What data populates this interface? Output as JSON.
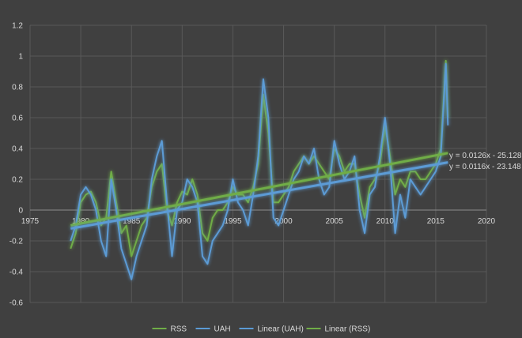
{
  "chart_data": {
    "type": "line",
    "title": "",
    "xlabel": "",
    "ylabel": "",
    "xlim": [
      1975,
      2020
    ],
    "ylim": [
      -0.6,
      1.2
    ],
    "x_ticks": [
      "1975",
      "1980",
      "1985",
      "1990",
      "1995",
      "2000",
      "2005",
      "2010",
      "2015",
      "2020"
    ],
    "y_ticks": [
      "-0.6",
      "-0.4",
      "-0.2",
      "0",
      "0.2",
      "0.4",
      "0.6",
      "0.8",
      "1",
      "1.2"
    ],
    "grid": true,
    "legend_position": "bottom",
    "legend": [
      {
        "label": "RSS",
        "color": "#70ad47"
      },
      {
        "label": "UAH",
        "color": "#5b9bd5"
      },
      {
        "label": "Linear (UAH)",
        "color": "#5b9bd5"
      },
      {
        "label": "Linear (RSS)",
        "color": "#70ad47"
      }
    ],
    "series": [
      {
        "name": "RSS",
        "color": "#70ad47",
        "x": [
          1979.0,
          1979.5,
          1980.0,
          1980.5,
          1981.0,
          1981.5,
          1982.0,
          1982.5,
          1983.0,
          1983.5,
          1984.0,
          1984.5,
          1985.0,
          1985.5,
          1986.0,
          1986.5,
          1987.0,
          1987.5,
          1988.0,
          1988.5,
          1989.0,
          1989.5,
          1990.0,
          1990.5,
          1991.0,
          1991.5,
          1992.0,
          1992.5,
          1993.0,
          1993.5,
          1994.0,
          1994.5,
          1995.0,
          1995.5,
          1996.0,
          1996.5,
          1997.0,
          1997.5,
          1998.0,
          1998.5,
          1999.0,
          1999.5,
          2000.0,
          2000.5,
          2001.0,
          2001.5,
          2002.0,
          2002.5,
          2003.0,
          2003.5,
          2004.0,
          2004.5,
          2005.0,
          2005.5,
          2006.0,
          2006.5,
          2007.0,
          2007.5,
          2008.0,
          2008.5,
          2009.0,
          2009.5,
          2010.0,
          2010.5,
          2011.0,
          2011.5,
          2012.0,
          2012.5,
          2013.0,
          2013.5,
          2014.0,
          2014.5,
          2015.0,
          2015.5,
          2016.0,
          2016.2
        ],
        "values": [
          -0.25,
          -0.15,
          0.05,
          0.1,
          0.12,
          0.05,
          -0.1,
          -0.05,
          0.25,
          0.05,
          -0.15,
          -0.1,
          -0.3,
          -0.2,
          -0.1,
          -0.05,
          0.15,
          0.25,
          0.3,
          0.0,
          -0.1,
          0.05,
          0.12,
          0.1,
          0.2,
          0.1,
          -0.15,
          -0.2,
          -0.05,
          0.0,
          0.0,
          0.05,
          0.15,
          0.1,
          0.1,
          0.05,
          0.15,
          0.3,
          0.75,
          0.5,
          0.05,
          0.05,
          0.1,
          0.15,
          0.25,
          0.3,
          0.35,
          0.3,
          0.35,
          0.3,
          0.25,
          0.2,
          0.4,
          0.35,
          0.25,
          0.3,
          0.3,
          0.1,
          -0.05,
          0.15,
          0.2,
          0.3,
          0.55,
          0.35,
          0.1,
          0.2,
          0.15,
          0.25,
          0.25,
          0.2,
          0.2,
          0.25,
          0.3,
          0.4,
          0.97,
          0.6
        ]
      },
      {
        "name": "UAH",
        "color": "#5b9bd5",
        "x": [
          1979.0,
          1979.5,
          1980.0,
          1980.5,
          1981.0,
          1981.5,
          1982.0,
          1982.5,
          1983.0,
          1983.5,
          1984.0,
          1984.5,
          1985.0,
          1985.5,
          1986.0,
          1986.5,
          1987.0,
          1987.5,
          1988.0,
          1988.5,
          1989.0,
          1989.5,
          1990.0,
          1990.5,
          1991.0,
          1991.5,
          1992.0,
          1992.5,
          1993.0,
          1993.5,
          1994.0,
          1994.5,
          1995.0,
          1995.5,
          1996.0,
          1996.5,
          1997.0,
          1997.5,
          1998.0,
          1998.5,
          1999.0,
          1999.5,
          2000.0,
          2000.5,
          2001.0,
          2001.5,
          2002.0,
          2002.5,
          2003.0,
          2003.5,
          2004.0,
          2004.5,
          2005.0,
          2005.5,
          2006.0,
          2006.5,
          2007.0,
          2007.5,
          2008.0,
          2008.5,
          2009.0,
          2009.5,
          2010.0,
          2010.5,
          2011.0,
          2011.5,
          2012.0,
          2012.5,
          2013.0,
          2013.5,
          2014.0,
          2014.5,
          2015.0,
          2015.5,
          2016.0,
          2016.2
        ],
        "values": [
          -0.2,
          -0.1,
          0.1,
          0.15,
          0.1,
          0.0,
          -0.2,
          -0.3,
          0.2,
          0.0,
          -0.25,
          -0.35,
          -0.45,
          -0.3,
          -0.2,
          -0.1,
          0.2,
          0.35,
          0.45,
          0.05,
          -0.3,
          0.0,
          0.05,
          0.2,
          0.15,
          0.05,
          -0.3,
          -0.35,
          -0.2,
          -0.15,
          -0.1,
          0.0,
          0.2,
          0.05,
          0.0,
          -0.1,
          0.1,
          0.35,
          0.85,
          0.6,
          -0.05,
          -0.1,
          0.0,
          0.1,
          0.2,
          0.25,
          0.35,
          0.3,
          0.4,
          0.2,
          0.1,
          0.15,
          0.45,
          0.3,
          0.2,
          0.25,
          0.35,
          0.0,
          -0.15,
          0.1,
          0.15,
          0.35,
          0.6,
          0.3,
          -0.15,
          0.1,
          -0.05,
          0.2,
          0.15,
          0.1,
          0.15,
          0.2,
          0.25,
          0.35,
          0.95,
          0.55
        ]
      },
      {
        "name": "Linear (UAH)",
        "color": "#5b9bd5",
        "x": [
          1979.0,
          2016.2
        ],
        "values": [
          -0.12,
          0.31
        ]
      },
      {
        "name": "Linear (RSS)",
        "color": "#70ad47",
        "x": [
          1979.0,
          2016.2
        ],
        "values": [
          -0.1,
          0.37
        ]
      }
    ],
    "annotations": [
      {
        "text": "y = 0.0126x - 25.128"
      },
      {
        "text": "y = 0.0116x - 23.148"
      }
    ]
  }
}
